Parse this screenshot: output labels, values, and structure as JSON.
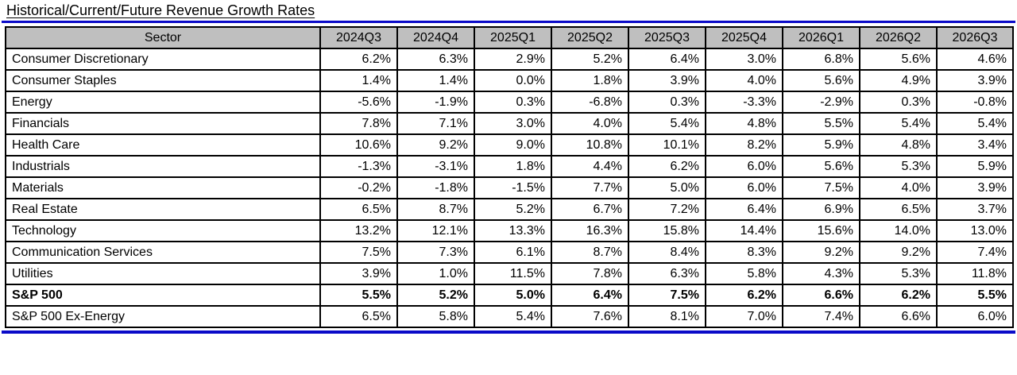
{
  "title": "Historical/Current/Future Revenue Growth Rates",
  "accent_color": "#0A0AC8",
  "header_bg_color": "#bfbfbf",
  "chart_data": {
    "type": "table",
    "title": "Historical/Current/Future Revenue Growth Rates",
    "columns": [
      "Sector",
      "2024Q3",
      "2024Q4",
      "2025Q1",
      "2025Q2",
      "2025Q3",
      "2025Q4",
      "2026Q1",
      "2026Q2",
      "2026Q3"
    ],
    "unit": "%",
    "rows": [
      {
        "sector": "Consumer Discretionary",
        "bold": false,
        "values": [
          "6.2%",
          "6.3%",
          "2.9%",
          "5.2%",
          "6.4%",
          "3.0%",
          "6.8%",
          "5.6%",
          "4.6%"
        ]
      },
      {
        "sector": "Consumer Staples",
        "bold": false,
        "values": [
          "1.4%",
          "1.4%",
          "0.0%",
          "1.8%",
          "3.9%",
          "4.0%",
          "5.6%",
          "4.9%",
          "3.9%"
        ]
      },
      {
        "sector": "Energy",
        "bold": false,
        "values": [
          "-5.6%",
          "-1.9%",
          "0.3%",
          "-6.8%",
          "0.3%",
          "-3.3%",
          "-2.9%",
          "0.3%",
          "-0.8%"
        ]
      },
      {
        "sector": "Financials",
        "bold": false,
        "values": [
          "7.8%",
          "7.1%",
          "3.0%",
          "4.0%",
          "5.4%",
          "4.8%",
          "5.5%",
          "5.4%",
          "5.4%"
        ]
      },
      {
        "sector": "Health Care",
        "bold": false,
        "values": [
          "10.6%",
          "9.2%",
          "9.0%",
          "10.8%",
          "10.1%",
          "8.2%",
          "5.9%",
          "4.8%",
          "3.4%"
        ]
      },
      {
        "sector": "Industrials",
        "bold": false,
        "values": [
          "-1.3%",
          "-3.1%",
          "1.8%",
          "4.4%",
          "6.2%",
          "6.0%",
          "5.6%",
          "5.3%",
          "5.9%"
        ]
      },
      {
        "sector": "Materials",
        "bold": false,
        "values": [
          "-0.2%",
          "-1.8%",
          "-1.5%",
          "7.7%",
          "5.0%",
          "6.0%",
          "7.5%",
          "4.0%",
          "3.9%"
        ]
      },
      {
        "sector": "Real Estate",
        "bold": false,
        "values": [
          "6.5%",
          "8.7%",
          "5.2%",
          "6.7%",
          "7.2%",
          "6.4%",
          "6.9%",
          "6.5%",
          "3.7%"
        ]
      },
      {
        "sector": "Technology",
        "bold": false,
        "values": [
          "13.2%",
          "12.1%",
          "13.3%",
          "16.3%",
          "15.8%",
          "14.4%",
          "15.6%",
          "14.0%",
          "13.0%"
        ]
      },
      {
        "sector": "Communication Services",
        "bold": false,
        "values": [
          "7.5%",
          "7.3%",
          "6.1%",
          "8.7%",
          "8.4%",
          "8.3%",
          "9.2%",
          "9.2%",
          "7.4%"
        ]
      },
      {
        "sector": "Utilities",
        "bold": false,
        "values": [
          "3.9%",
          "1.0%",
          "11.5%",
          "7.8%",
          "6.3%",
          "5.8%",
          "4.3%",
          "5.3%",
          "11.8%"
        ]
      },
      {
        "sector": "S&P 500",
        "bold": true,
        "values": [
          "5.5%",
          "5.2%",
          "5.0%",
          "6.4%",
          "7.5%",
          "6.2%",
          "6.6%",
          "6.2%",
          "5.5%"
        ]
      },
      {
        "sector": "S&P 500 Ex-Energy",
        "bold": false,
        "values": [
          "6.5%",
          "5.8%",
          "5.4%",
          "7.6%",
          "8.1%",
          "7.0%",
          "7.4%",
          "6.6%",
          "6.0%"
        ]
      }
    ]
  }
}
